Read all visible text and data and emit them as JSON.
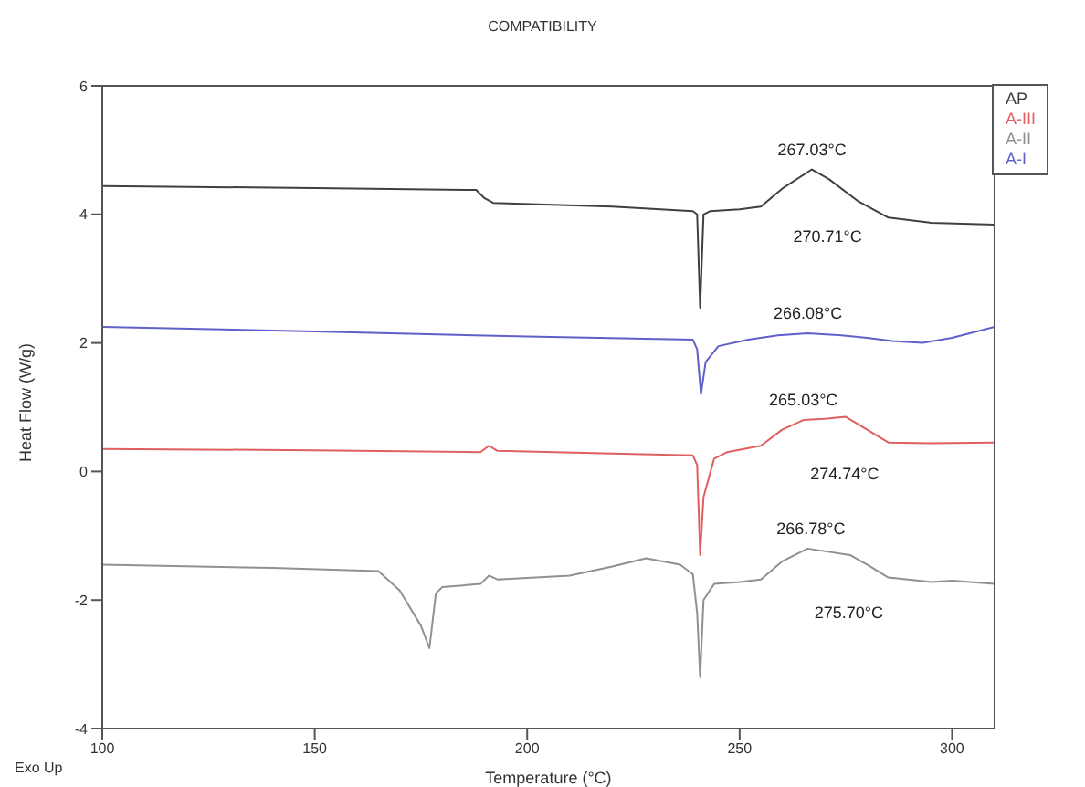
{
  "chart_data": {
    "type": "line",
    "title": "COMPATIBILITY",
    "xlabel": "Temperature (°C)",
    "ylabel": "Heat Flow (W/g)",
    "xlim": [
      100,
      310
    ],
    "xticks": [
      100,
      150,
      200,
      250,
      300
    ],
    "ylim": [
      -4,
      6
    ],
    "yticks": [
      -4,
      -2,
      0,
      2,
      4,
      6
    ],
    "grid": false,
    "legend": "top right",
    "marker": "none",
    "line_style": "solid",
    "series": [
      {
        "name": "AP",
        "color": "#404040",
        "x": [
          100,
          150,
          188,
          190,
          192,
          220,
          239,
          240,
          240.7,
          241.5,
          243,
          250,
          255,
          260,
          267,
          271,
          278,
          285,
          295,
          310
        ],
        "values": [
          4.44,
          4.41,
          4.38,
          4.25,
          4.18,
          4.12,
          4.05,
          4.0,
          2.55,
          4.0,
          4.05,
          4.08,
          4.12,
          4.4,
          4.7,
          4.55,
          4.2,
          3.95,
          3.87,
          3.84
        ]
      },
      {
        "name": "A-III",
        "color": "#e06060",
        "x": [
          100,
          150,
          189,
          191,
          193,
          220,
          239,
          240,
          240.7,
          241.5,
          244,
          247,
          255,
          260,
          265,
          270,
          275,
          280,
          285,
          295,
          310
        ],
        "values": [
          0.35,
          0.33,
          0.3,
          0.4,
          0.32,
          0.28,
          0.25,
          0.1,
          -1.3,
          -0.4,
          0.2,
          0.3,
          0.4,
          0.65,
          0.8,
          0.82,
          0.85,
          0.65,
          0.45,
          0.44,
          0.45
        ]
      },
      {
        "name": "A-II",
        "color": "#909090",
        "x": [
          100,
          140,
          165,
          170,
          175,
          177,
          178.5,
          180,
          189,
          191,
          193,
          210,
          220,
          228,
          236,
          239,
          240,
          240.7,
          241.5,
          244,
          250,
          255,
          260,
          266,
          276,
          280,
          285,
          295,
          300,
          310
        ],
        "values": [
          -1.45,
          -1.5,
          -1.55,
          -1.85,
          -2.4,
          -2.75,
          -1.9,
          -1.8,
          -1.75,
          -1.62,
          -1.68,
          -1.62,
          -1.48,
          -1.35,
          -1.45,
          -1.6,
          -2.2,
          -3.2,
          -2.0,
          -1.75,
          -1.72,
          -1.68,
          -1.4,
          -1.2,
          -1.3,
          -1.45,
          -1.65,
          -1.72,
          -1.7,
          -1.75
        ]
      },
      {
        "name": "A-I",
        "color": "#6060c8",
        "x": [
          100,
          150,
          200,
          239,
          240,
          240.9,
          242,
          245,
          252,
          259,
          266,
          274,
          280,
          286,
          293,
          300,
          310
        ],
        "values": [
          2.25,
          2.18,
          2.1,
          2.05,
          1.9,
          1.2,
          1.7,
          1.95,
          2.05,
          2.12,
          2.15,
          2.12,
          2.08,
          2.03,
          2.0,
          2.08,
          2.25
        ]
      }
    ],
    "annotations": [
      {
        "text": "267.03°C",
        "x": 267.03,
        "y": 4.7
      },
      {
        "text": "270.71°C",
        "x": 270.71,
        "y": 4.55
      },
      {
        "text": "266.08°C",
        "x": 266.08,
        "y": 2.15
      },
      {
        "text": "265.03°C",
        "x": 265.03,
        "y": 0.8
      },
      {
        "text": "274.74°C",
        "x": 274.74,
        "y": 0.85
      },
      {
        "text": "266.78°C",
        "x": 266.78,
        "y": -1.2
      },
      {
        "text": "275.70°C",
        "x": 275.7,
        "y": -1.3
      },
      "Exo Up"
    ]
  }
}
